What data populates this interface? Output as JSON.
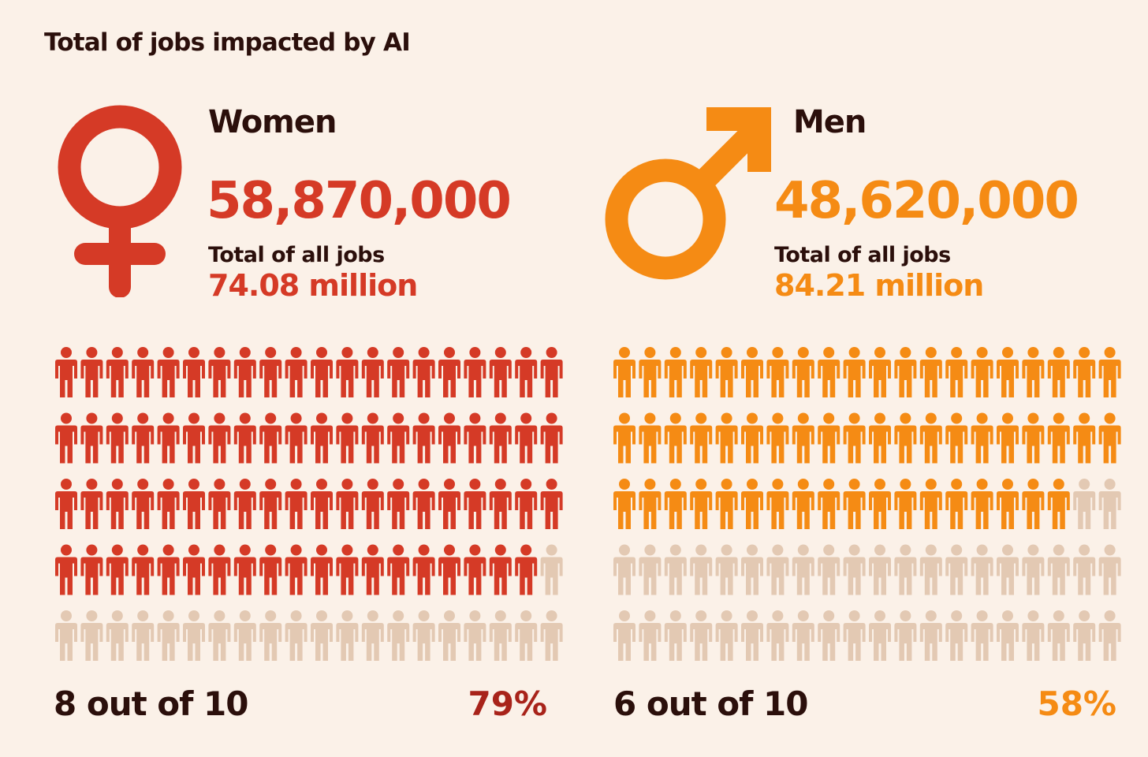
{
  "title": "Total of jobs impacted by AI",
  "colors": {
    "women": "#d53a26",
    "women_pct": "#a8231a",
    "men": "#f58b14",
    "inactive": "#e3c9b3",
    "text": "#2b0f0b"
  },
  "chart_data": [
    {
      "type": "pictogram",
      "group": "Women",
      "icon": "female-symbol-icon",
      "impacted": "58,870,000",
      "total_label": "Total of all jobs",
      "total": "74.08 million",
      "ratio_text": "8 out of 10",
      "percent_text": "79%",
      "percent": 79,
      "grid": {
        "rows": 5,
        "cols": 20,
        "filled": 79
      }
    },
    {
      "type": "pictogram",
      "group": "Men",
      "icon": "male-symbol-icon",
      "impacted": "48,620,000",
      "total_label": "Total of all jobs",
      "total": "84.21 million",
      "ratio_text": "6 out of 10",
      "percent_text": "58%",
      "percent": 58,
      "grid": {
        "rows": 5,
        "cols": 20,
        "filled": 58
      }
    }
  ]
}
